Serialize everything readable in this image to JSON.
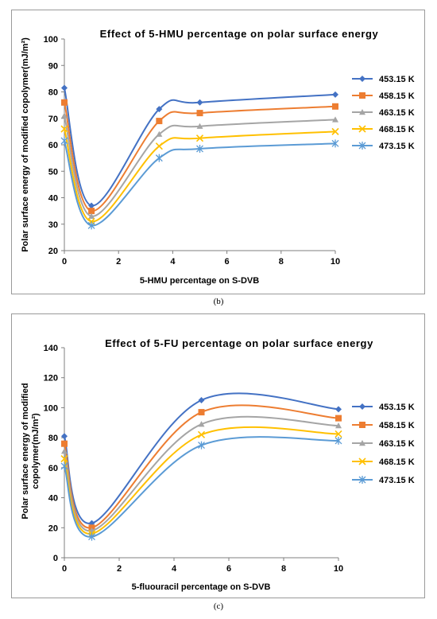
{
  "chart_data": [
    {
      "type": "line",
      "smooth": true,
      "title": "Effect of 5-HMU percentage on polar surface energy",
      "xlabel": "5-HMU percentage on S-DVB",
      "ylabel": "Polar surface energy of modified copolymer(mJ/m²)",
      "xlim": [
        0,
        10
      ],
      "ylim": [
        20,
        100
      ],
      "xticks": [
        0,
        2,
        4,
        6,
        8,
        10
      ],
      "yticks": [
        20,
        30,
        40,
        50,
        60,
        70,
        80,
        90,
        100
      ],
      "grid": false,
      "legend_position": "right",
      "x": [
        0,
        1,
        3.5,
        5,
        10
      ],
      "series": [
        {
          "name": "453.15 K",
          "color": "#4472C4",
          "marker": "diamond",
          "values": [
            81.5,
            37,
            73.5,
            76,
            79
          ]
        },
        {
          "name": "458.15 K",
          "color": "#ED7D31",
          "marker": "square",
          "values": [
            76,
            35,
            69,
            72,
            74.5
          ]
        },
        {
          "name": "463.15 K",
          "color": "#A5A5A5",
          "marker": "triangle",
          "values": [
            71,
            33,
            64,
            67,
            69.5
          ]
        },
        {
          "name": "468.15 K",
          "color": "#FFC000",
          "marker": "x",
          "values": [
            66,
            31,
            59.5,
            62.5,
            65
          ]
        },
        {
          "name": "473.15 K",
          "color": "#5B9BD5",
          "marker": "star",
          "values": [
            61.5,
            29.5,
            55,
            58.5,
            60.5
          ]
        }
      ],
      "caption": "(b)"
    },
    {
      "type": "line",
      "smooth": true,
      "title": "Effect of 5-FU percentage on polar surface energy",
      "xlabel": "5-fluouracil percentage on S-DVB",
      "ylabel_lines": [
        "Polar surface energy of modified",
        "copolymer(mJ/m²)"
      ],
      "xlim": [
        0,
        10
      ],
      "ylim": [
        0,
        140
      ],
      "xticks": [
        0,
        2,
        4,
        6,
        8,
        10
      ],
      "yticks": [
        0,
        20,
        40,
        60,
        80,
        100,
        120,
        140
      ],
      "grid": false,
      "legend_position": "right",
      "x": [
        0,
        1,
        5,
        10
      ],
      "series": [
        {
          "name": "453.15 K",
          "color": "#4472C4",
          "marker": "diamond",
          "values": [
            81,
            23,
            105,
            99
          ]
        },
        {
          "name": "458.15 K",
          "color": "#ED7D31",
          "marker": "square",
          "values": [
            76,
            20,
            97,
            93
          ]
        },
        {
          "name": "463.15 K",
          "color": "#A5A5A5",
          "marker": "triangle",
          "values": [
            71,
            18,
            89,
            88
          ]
        },
        {
          "name": "468.15 K",
          "color": "#FFC000",
          "marker": "x",
          "values": [
            66,
            16,
            82,
            82.5
          ]
        },
        {
          "name": "473.15 K",
          "color": "#5B9BD5",
          "marker": "star",
          "values": [
            61,
            14,
            75,
            78
          ]
        }
      ],
      "caption": "(c)"
    }
  ]
}
